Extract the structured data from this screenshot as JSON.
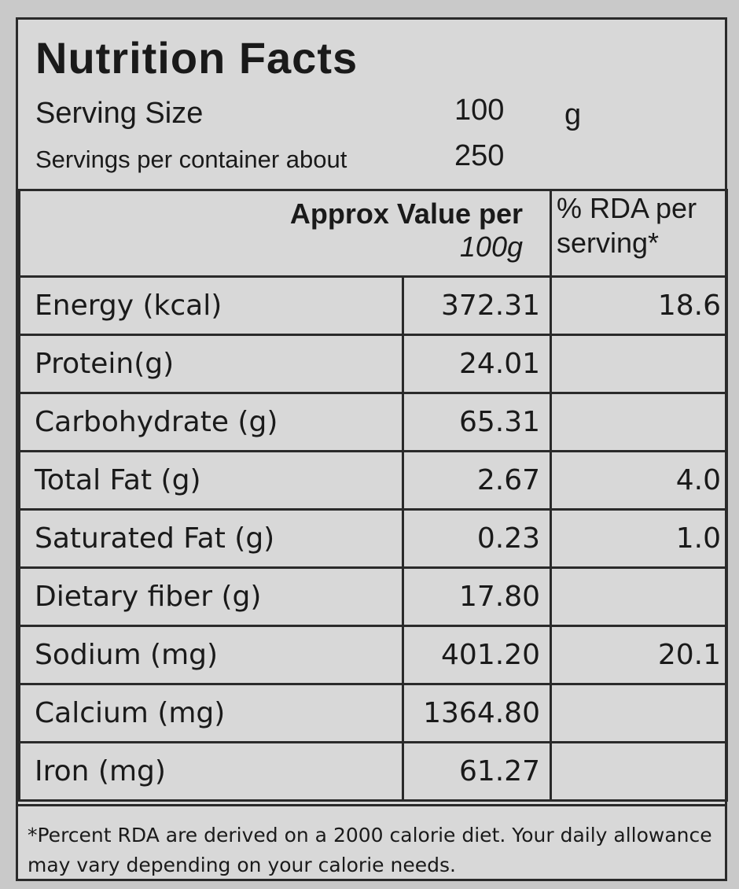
{
  "header": {
    "title": "Nutrition Facts",
    "serving_size_label": "Serving Size",
    "serving_size_value": "100",
    "serving_size_unit": "g",
    "servings_label": "Servings per container about",
    "servings_value": "250"
  },
  "table": {
    "col_value_line1": "Approx Value per",
    "col_value_line2": "100g",
    "col_rda_line1": "% RDA  per",
    "col_rda_line2": "serving*",
    "rows": [
      {
        "name": "Energy (kcal)",
        "value": "372.31",
        "rda": "18.6"
      },
      {
        "name": "Protein(g)",
        "value": "24.01",
        "rda": ""
      },
      {
        "name": "Carbohydrate (g)",
        "value": "65.31",
        "rda": ""
      },
      {
        "name": "Total Fat (g)",
        "value": "2.67",
        "rda": "4.0"
      },
      {
        "name": "Saturated Fat (g)",
        "value": "0.23",
        "rda": "1.0"
      },
      {
        "name": "Dietary fiber (g)",
        "value": "17.80",
        "rda": ""
      },
      {
        "name": "Sodium (mg)",
        "value": "401.20",
        "rda": "20.1"
      },
      {
        "name": "Calcium (mg)",
        "value": "1364.80",
        "rda": ""
      },
      {
        "name": "Iron (mg)",
        "value": "61.27",
        "rda": ""
      }
    ]
  },
  "footnote": "*Percent RDA are derived on a 2000 calorie diet. Your daily allowance may vary depending on your calorie needs."
}
